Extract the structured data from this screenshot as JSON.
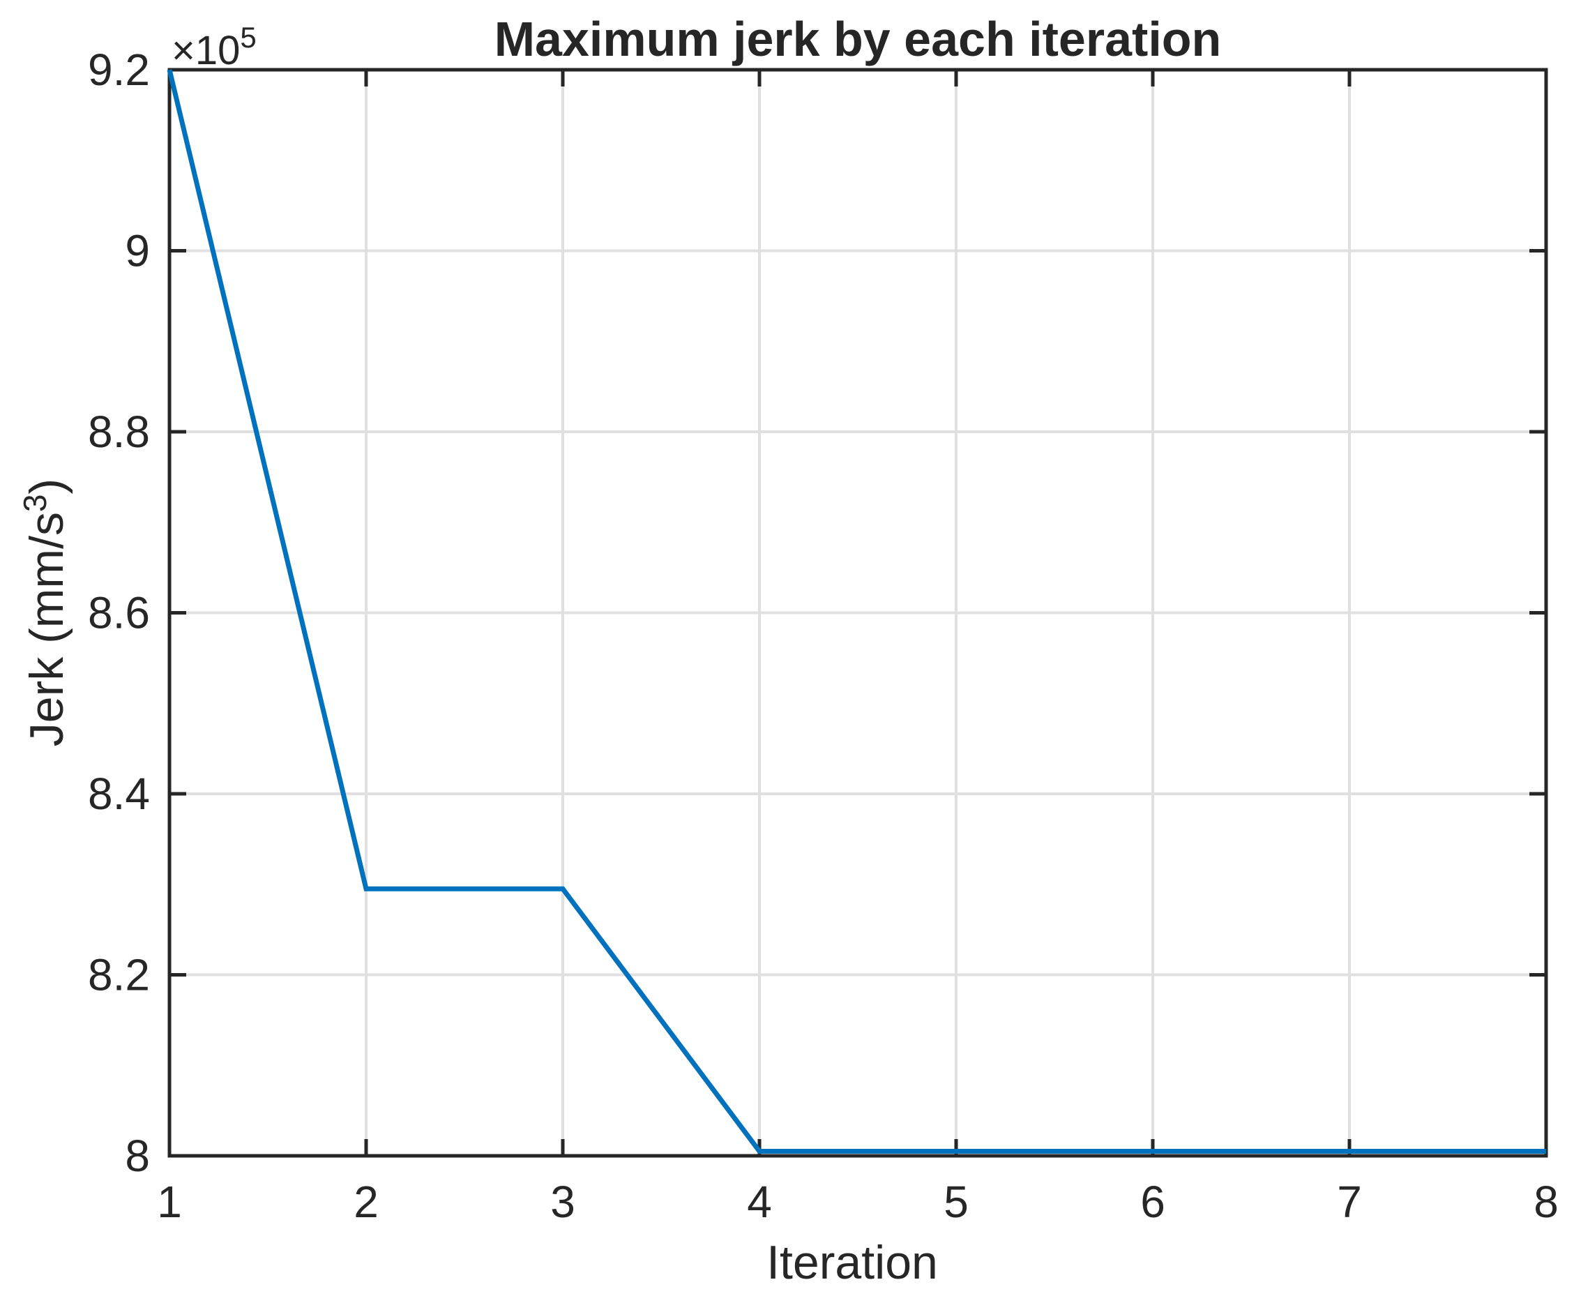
{
  "figure": {
    "title": "Maximum jerk by each iteration",
    "x_axis": {
      "label": "Iteration"
    },
    "y_axis": {
      "label_pre": "Jerk (mm/s",
      "label_sup": "3",
      "label_post": ")",
      "multiplier_pre": "×10",
      "multiplier_sup": "5"
    }
  },
  "chart_data": {
    "type": "line",
    "title": "Maximum jerk by each iteration",
    "xlabel": "Iteration",
    "ylabel": "Jerk (mm/s^3)",
    "x": [
      1,
      2,
      3,
      4,
      5,
      6,
      7,
      8
    ],
    "y": [
      920000,
      829500,
      829500,
      800500,
      800500,
      800500,
      800500,
      800500
    ],
    "xlim": [
      1,
      8
    ],
    "ylim": [
      800000,
      920000
    ],
    "xticks": [
      1,
      2,
      3,
      4,
      5,
      6,
      7,
      8
    ],
    "xtick_labels": [
      "1",
      "2",
      "3",
      "4",
      "5",
      "6",
      "7",
      "8"
    ],
    "yticks": [
      800000,
      820000,
      840000,
      860000,
      880000,
      900000,
      920000
    ],
    "ytick_labels": [
      "8",
      "8.2",
      "8.4",
      "8.6",
      "8.8",
      "9",
      "9.2"
    ],
    "y_multiplier_text": "×10^5",
    "grid": true,
    "legend": null,
    "line_color": "#0072BD",
    "grid_color": "#e0e0e0",
    "axis_color": "#262626",
    "background": "#ffffff"
  }
}
